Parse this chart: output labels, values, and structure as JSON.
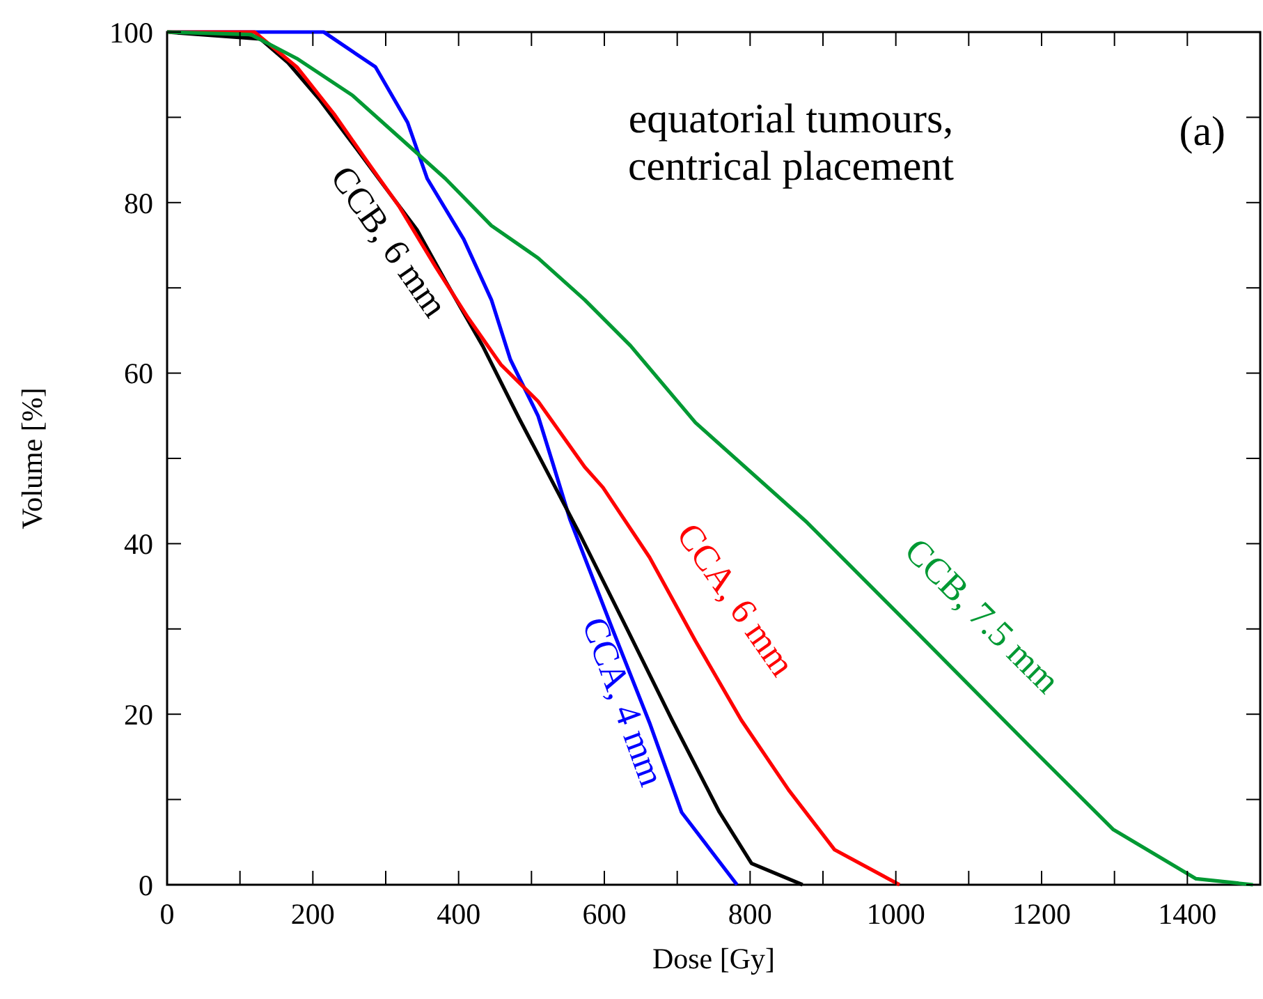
{
  "chart_data": {
    "type": "line",
    "xlabel": "Dose [Gy]",
    "ylabel": "Volume [%]",
    "xlim": [
      0,
      1500
    ],
    "ylim": [
      0,
      100
    ],
    "xticks": [
      0,
      {
        "value": 100,
        "label": null
      },
      200,
      {
        "value": 300,
        "label": null
      },
      400,
      {
        "value": 500,
        "label": null
      },
      600,
      {
        "value": 700,
        "label": null
      },
      800,
      {
        "value": 900,
        "label": null
      },
      1000,
      {
        "value": 1100,
        "label": null
      },
      1200,
      {
        "value": 1300,
        "label": null
      },
      1400,
      {
        "value": 1500,
        "label": null
      }
    ],
    "yticks": [
      0,
      {
        "value": 10,
        "label": null
      },
      20,
      {
        "value": 30,
        "label": null
      },
      40,
      {
        "value": 50,
        "label": null
      },
      60,
      {
        "value": 70,
        "label": null
      },
      80,
      {
        "value": 90,
        "label": null
      },
      100
    ],
    "grid": false,
    "marker": "none",
    "line_style": "solid",
    "annotations": [
      "equatorial tumours,\ncentrical placement",
      "(a)"
    ],
    "series": [
      {
        "name": "CCA, 4 mm",
        "color": "#0000ff",
        "x": [
          0,
          215,
          286,
          330,
          357,
          407,
          445,
          471,
          509,
          529,
          553,
          611,
          662,
          706,
          782
        ],
        "values": [
          100,
          100,
          95.9,
          89.4,
          82.8,
          75.7,
          68.6,
          61.6,
          55,
          49.5,
          42.8,
          30,
          19,
          8.5,
          0
        ]
      },
      {
        "name": "CCB, 6 mm",
        "color": "#000000",
        "x": [
          0,
          128,
          166,
          210,
          254,
          300,
          343,
          382,
          433,
          483,
          515,
          567,
          630,
          693,
          758,
          802,
          872
        ],
        "values": [
          100,
          99.2,
          96.4,
          92,
          87,
          81.7,
          76.8,
          70.8,
          63.2,
          54.7,
          49.5,
          41,
          30.2,
          19.3,
          8.5,
          2.5,
          0
        ]
      },
      {
        "name": "CCA, 6 mm",
        "color": "#ff0000",
        "x": [
          0,
          120,
          178,
          229,
          273,
          318,
          369,
          413,
          458,
          509,
          573,
          598,
          662,
          725,
          788,
          853,
          916,
          1005
        ],
        "values": [
          100,
          100,
          95.9,
          90.4,
          85,
          79.6,
          72.4,
          66.5,
          61,
          56.7,
          49,
          46.6,
          38.4,
          28.6,
          19.3,
          11.1,
          4.1,
          0
        ]
      },
      {
        "name": "CCB, 7.5 mm",
        "color": "#009933",
        "x": [
          0,
          115,
          178,
          254,
          318,
          382,
          445,
          509,
          573,
          636,
          725,
          878,
          1031,
          1183,
          1298,
          1412,
          1490
        ],
        "values": [
          100,
          99.7,
          96.9,
          92.6,
          87.7,
          82.8,
          77.3,
          73.5,
          68.6,
          63.2,
          54.2,
          42.5,
          29.4,
          16.3,
          6.5,
          0.7,
          0
        ]
      }
    ]
  }
}
